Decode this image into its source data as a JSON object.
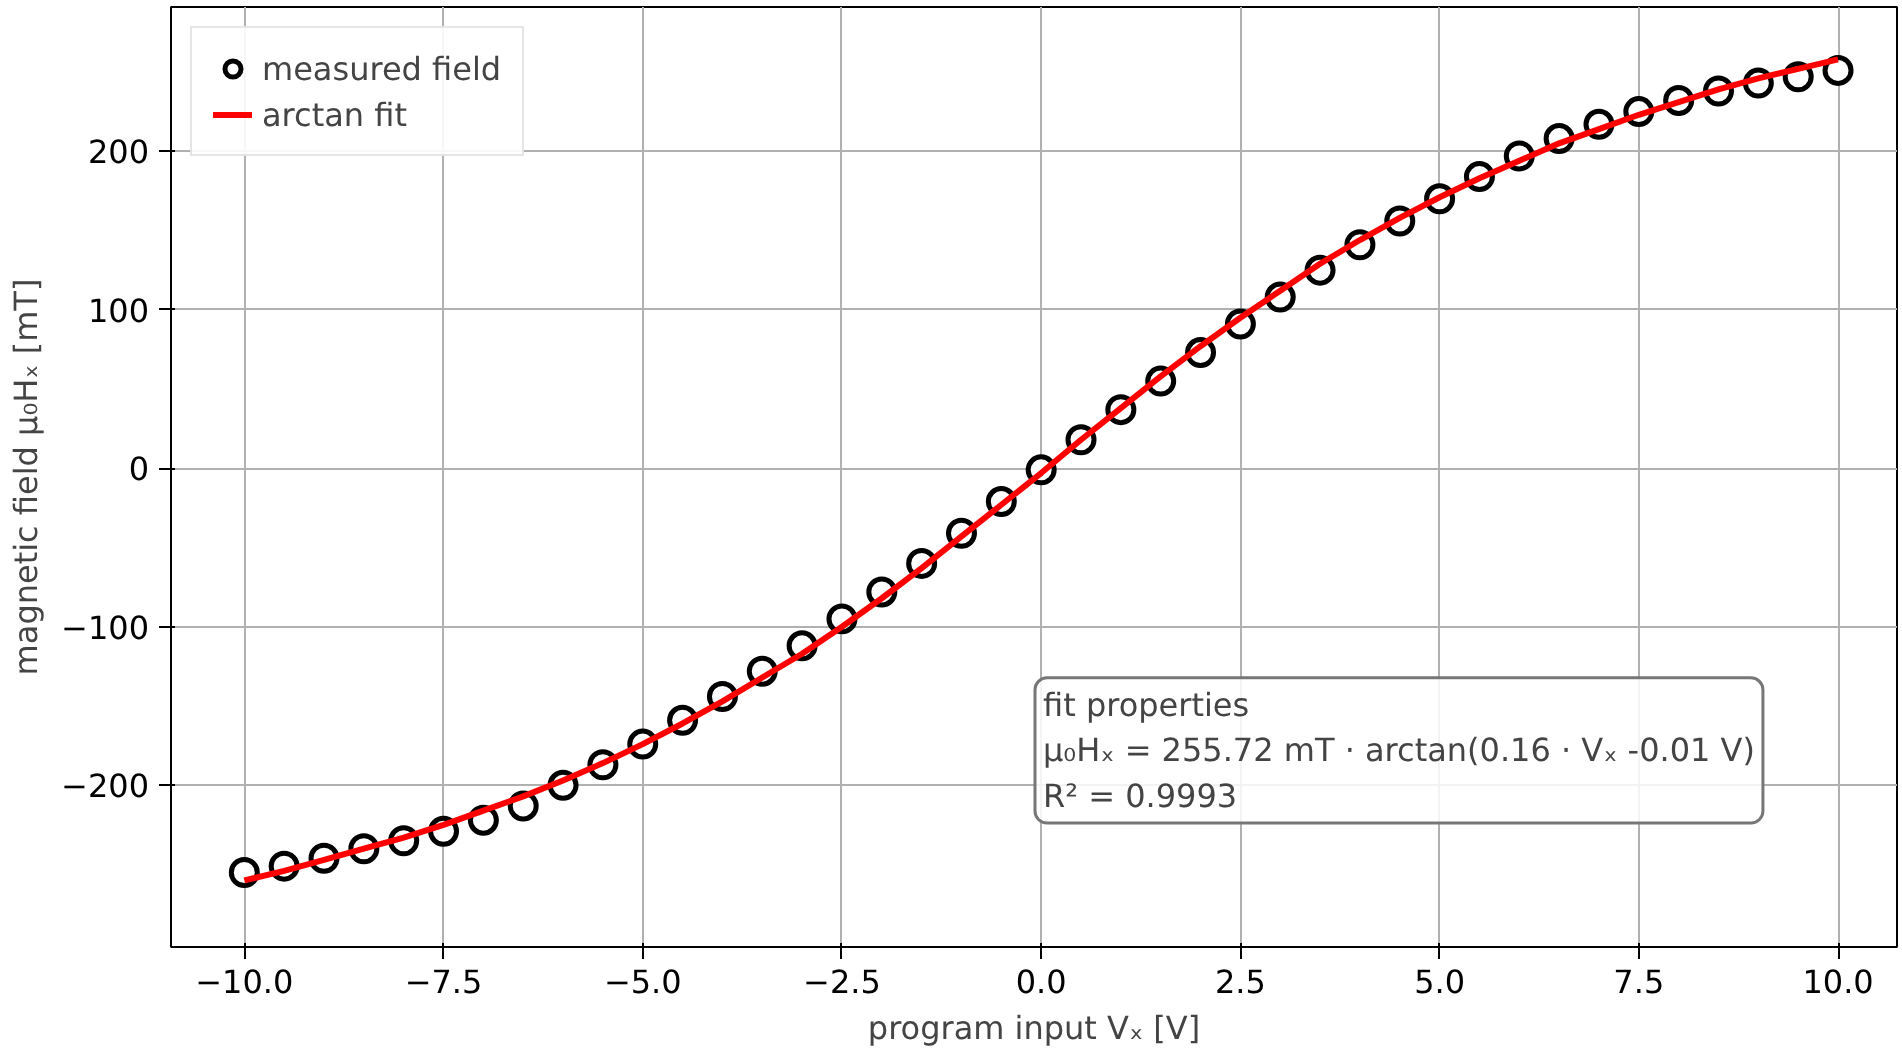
{
  "chart_data": {
    "type": "scatter",
    "xlabel": "program input Vₓ [V]",
    "ylabel": "magnetic field μ₀Hₓ [mT]",
    "xlim": [
      -10.92,
      10.74
    ],
    "ylim": [
      -302,
      291
    ],
    "xticks": [
      {
        "value": -10,
        "label": "−10.0"
      },
      {
        "value": -7.5,
        "label": "−7.5"
      },
      {
        "value": -5,
        "label": "−5.0"
      },
      {
        "value": -2.5,
        "label": "−2.5"
      },
      {
        "value": 0,
        "label": "0.0"
      },
      {
        "value": 2.5,
        "label": "2.5"
      },
      {
        "value": 5,
        "label": "5.0"
      },
      {
        "value": 7.5,
        "label": "7.5"
      },
      {
        "value": 10,
        "label": "10.0"
      }
    ],
    "yticks": [
      {
        "value": -200,
        "label": "−200"
      },
      {
        "value": -100,
        "label": "−100"
      },
      0,
      100,
      200
    ],
    "grid": true,
    "legend": "top left",
    "series": [
      {
        "name": "measured field",
        "marker": "circle",
        "color": "#000000",
        "x": [
          -10,
          -9.5,
          -9,
          -8.5,
          -8,
          -7.5,
          -7,
          -6.5,
          -6,
          -5.5,
          -5,
          -4.5,
          -4,
          -3.5,
          -3,
          -2.5,
          -2,
          -1.5,
          -1,
          -0.5,
          0,
          0.5,
          1,
          1.5,
          2,
          2.5,
          3,
          3.5,
          4,
          4.5,
          5,
          5.5,
          6,
          6.5,
          7,
          7.5,
          8,
          8.5,
          9,
          9.5,
          10
        ],
        "values": [
          -255,
          -251,
          -246,
          -240,
          -235,
          -229,
          -222,
          -213,
          -200,
          -187,
          -174,
          -159,
          -144,
          -128,
          -112,
          -95,
          -78,
          -60,
          -41,
          -21,
          -1,
          18,
          37,
          55,
          73,
          91,
          108,
          125,
          141,
          156,
          170,
          184,
          197,
          208,
          217,
          225,
          232,
          238,
          243,
          247,
          251
        ]
      },
      {
        "name": "arctan fit",
        "type": "line",
        "color": "#ff0000",
        "x": [
          -10,
          -9.5,
          -9,
          -8.5,
          -8,
          -7.5,
          -7,
          -6.5,
          -6,
          -5.5,
          -5,
          -4.5,
          -4,
          -3.5,
          -3,
          -2.5,
          -2,
          -1.5,
          -1,
          -0.5,
          0,
          0.5,
          1,
          1.5,
          2,
          2.5,
          3,
          3.5,
          4,
          4.5,
          5,
          5.5,
          6,
          6.5,
          7,
          7.5,
          8,
          8.5,
          9,
          9.5,
          10
        ],
        "values": [
          -260,
          -254,
          -247,
          -240,
          -233,
          -225,
          -216,
          -207,
          -197,
          -186,
          -174,
          -161,
          -147,
          -132,
          -117,
          -100,
          -82,
          -63,
          -43,
          -23,
          -3,
          18,
          38,
          58,
          77,
          95,
          112,
          129,
          144,
          158,
          171,
          183,
          194,
          205,
          214,
          223,
          231,
          239,
          246,
          252,
          258
        ]
      }
    ],
    "annotations": [
      "fit properties",
      "μ₀Hₓ = 255.72 mT · arctan(0.16 · Vₓ -0.01 V)",
      "R² = 0.9993"
    ]
  }
}
